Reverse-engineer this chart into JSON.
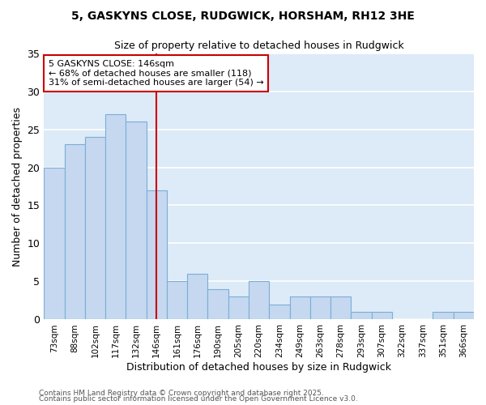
{
  "title1": "5, GASKYNS CLOSE, RUDGWICK, HORSHAM, RH12 3HE",
  "title2": "Size of property relative to detached houses in Rudgwick",
  "xlabel": "Distribution of detached houses by size in Rudgwick",
  "ylabel": "Number of detached properties",
  "categories": [
    "73sqm",
    "88sqm",
    "102sqm",
    "117sqm",
    "132sqm",
    "146sqm",
    "161sqm",
    "176sqm",
    "190sqm",
    "205sqm",
    "220sqm",
    "234sqm",
    "249sqm",
    "263sqm",
    "278sqm",
    "293sqm",
    "307sqm",
    "322sqm",
    "337sqm",
    "351sqm",
    "366sqm"
  ],
  "values": [
    20,
    23,
    24,
    27,
    26,
    17,
    5,
    6,
    4,
    3,
    5,
    2,
    3,
    3,
    3,
    1,
    1,
    0,
    0,
    1,
    1
  ],
  "bar_color": "#c5d8f0",
  "bar_edge_color": "#7aaed6",
  "plot_bg_color": "#ddeaf7",
  "figure_bg_color": "#ffffff",
  "grid_color": "#ffffff",
  "redline_index": 5,
  "annotation_text": "5 GASKYNS CLOSE: 146sqm\n← 68% of detached houses are smaller (118)\n31% of semi-detached houses are larger (54) →",
  "annotation_box_color": "#ffffff",
  "annotation_box_edge": "#cc0000",
  "redline_color": "#cc0000",
  "ylim": [
    0,
    35
  ],
  "yticks": [
    0,
    5,
    10,
    15,
    20,
    25,
    30,
    35
  ],
  "footer1": "Contains HM Land Registry data © Crown copyright and database right 2025.",
  "footer2": "Contains public sector information licensed under the Open Government Licence v3.0."
}
